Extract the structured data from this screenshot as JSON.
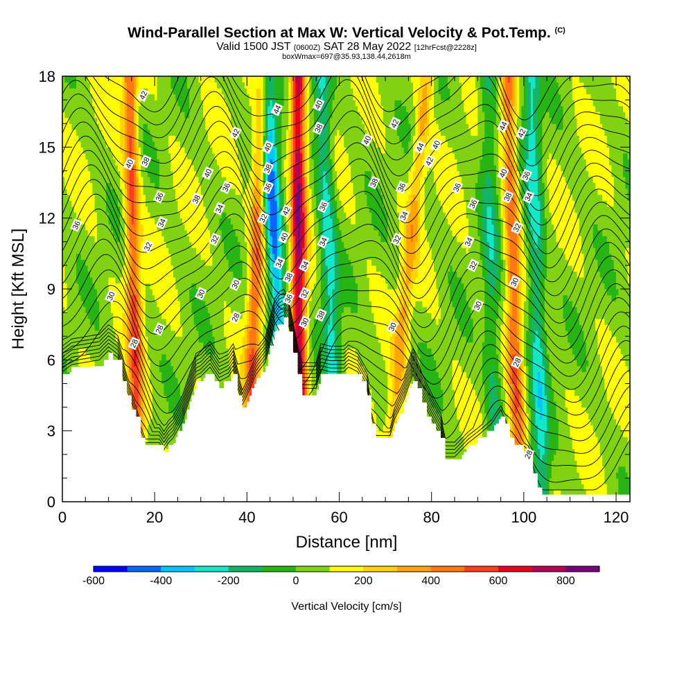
{
  "header": {
    "title": "Wind-Parallel Section at Max W: Vertical Velocity & Pot.Temp.",
    "title_mark": "(C)",
    "line2_a": "Valid 1500 JST",
    "line2_b": "(0600Z)",
    "line2_c": "SAT 28 May 2022",
    "line2_d": "[12hrFcst@2228z]",
    "line3": "boxWmax=697@35.93,138.44,2618m"
  },
  "chart_data": {
    "type": "heatmap",
    "xlabel": "Distance [nm]",
    "ylabel": "Height [Kft MSL]",
    "xlim": [
      0,
      123
    ],
    "ylim": [
      0,
      18
    ],
    "x_ticks": [
      0,
      20,
      40,
      60,
      80,
      100,
      120
    ],
    "y_ticks": [
      0,
      3,
      6,
      9,
      12,
      15,
      18
    ],
    "colorbar": {
      "label": "Vertical Velocity [cm/s]",
      "ticks": [
        -600,
        -400,
        -200,
        0,
        200,
        400,
        600,
        800
      ],
      "bounds": [
        -600,
        -500,
        -400,
        -300,
        -200,
        -100,
        0,
        100,
        200,
        300,
        400,
        500,
        600,
        700,
        800,
        900
      ],
      "colors": [
        "#0000ff",
        "#0a64ff",
        "#00c8ff",
        "#14e6c8",
        "#14b464",
        "#28b414",
        "#82d214",
        "#ffff00",
        "#ffd200",
        "#ffa500",
        "#ff7814",
        "#ff3c1e",
        "#e6001e",
        "#b40050",
        "#780078"
      ]
    },
    "terrain": [
      [
        0,
        5.3
      ],
      [
        2,
        5.6
      ],
      [
        8,
        5.8
      ],
      [
        10,
        6.2
      ],
      [
        12,
        5.9
      ],
      [
        14,
        4.5
      ],
      [
        16,
        3.5
      ],
      [
        17,
        2.8
      ],
      [
        18,
        2.3
      ],
      [
        21,
        2.3
      ],
      [
        22,
        2.0
      ],
      [
        23,
        2.3
      ],
      [
        24,
        2.5
      ],
      [
        26,
        3.2
      ],
      [
        27,
        3.8
      ],
      [
        29,
        5.0
      ],
      [
        30,
        5.1
      ],
      [
        32,
        5.5
      ],
      [
        34,
        4.9
      ],
      [
        36,
        5.1
      ],
      [
        37,
        5.4
      ],
      [
        38,
        4.6
      ],
      [
        39,
        3.9
      ],
      [
        40,
        4.3
      ],
      [
        42,
        5.2
      ],
      [
        44,
        5.7
      ],
      [
        46,
        7.3
      ],
      [
        47,
        7.6
      ],
      [
        48,
        7.7
      ],
      [
        49,
        7.3
      ],
      [
        50,
        6.3
      ],
      [
        51,
        5.3
      ],
      [
        52,
        4.6
      ],
      [
        55,
        4.6
      ],
      [
        56,
        5.4
      ],
      [
        58,
        5.3
      ],
      [
        61,
        5.3
      ],
      [
        62,
        5.5
      ],
      [
        64,
        5.3
      ],
      [
        66,
        4.6
      ],
      [
        67,
        3.4
      ],
      [
        68,
        2.6
      ],
      [
        71,
        2.6
      ],
      [
        72,
        3.3
      ],
      [
        74,
        4.1
      ],
      [
        76,
        5.2
      ],
      [
        78,
        4.1
      ],
      [
        80,
        3.3
      ],
      [
        82,
        2.6
      ],
      [
        83,
        1.7
      ],
      [
        85,
        1.7
      ],
      [
        86,
        1.9
      ],
      [
        88,
        2.3
      ],
      [
        90,
        2.6
      ],
      [
        93,
        3.1
      ],
      [
        94,
        3.4
      ],
      [
        95,
        3.7
      ],
      [
        96,
        3.3
      ],
      [
        97,
        2.6
      ],
      [
        99,
        2.3
      ],
      [
        101,
        2.0
      ],
      [
        102,
        1.3
      ],
      [
        103,
        0.7
      ],
      [
        104,
        0.3
      ],
      [
        110,
        0.3
      ],
      [
        115,
        0.3
      ],
      [
        123,
        0.3
      ]
    ],
    "updraft_bands": [
      {
        "x_bottom": 16.5,
        "x_top": 14.5,
        "w_max": 450
      },
      {
        "x_bottom": 40.0,
        "x_top": 43.5,
        "w_max": 400
      },
      {
        "x_bottom": 51.5,
        "x_top": 51.0,
        "w_max": 697
      },
      {
        "x_bottom": 70.0,
        "x_top": 79.0,
        "w_max": 250
      },
      {
        "x_bottom": 99.0,
        "x_top": 96.5,
        "w_max": 400
      }
    ],
    "downdraft_bands": [
      {
        "x_bottom": 49.0,
        "x_top": 44.0,
        "w_min": -500
      },
      {
        "x_bottom": 60.0,
        "x_top": 56.0,
        "w_min": -300
      },
      {
        "x_bottom": 104.0,
        "x_top": 101.5,
        "w_min": -300
      },
      {
        "x_bottom": 94.0,
        "x_top": 92.0,
        "w_min": -200
      }
    ],
    "theta_labels": [
      {
        "text": "42",
        "x": 17.5,
        "y": 17.2
      },
      {
        "text": "40",
        "x": 14.5,
        "y": 14.3
      },
      {
        "text": "38",
        "x": 18.0,
        "y": 14.4
      },
      {
        "text": "36",
        "x": 21.0,
        "y": 12.9
      },
      {
        "text": "34",
        "x": 21.5,
        "y": 11.8
      },
      {
        "text": "32",
        "x": 18.5,
        "y": 10.8
      },
      {
        "text": "36",
        "x": 3.0,
        "y": 11.7
      },
      {
        "text": "30",
        "x": 10.5,
        "y": 8.7
      },
      {
        "text": "28",
        "x": 15.5,
        "y": 6.7
      },
      {
        "text": "28",
        "x": 21.0,
        "y": 7.3
      },
      {
        "text": "42",
        "x": 37.5,
        "y": 15.6
      },
      {
        "text": "40",
        "x": 31.5,
        "y": 13.9
      },
      {
        "text": "38",
        "x": 29.0,
        "y": 12.8
      },
      {
        "text": "36",
        "x": 35.5,
        "y": 13.3
      },
      {
        "text": "34",
        "x": 34.0,
        "y": 12.4
      },
      {
        "text": "32",
        "x": 33.0,
        "y": 11.1
      },
      {
        "text": "30",
        "x": 30.0,
        "y": 8.8
      },
      {
        "text": "30",
        "x": 37.5,
        "y": 9.2
      },
      {
        "text": "28",
        "x": 37.5,
        "y": 7.8
      },
      {
        "text": "44",
        "x": 46.5,
        "y": 16.6
      },
      {
        "text": "40",
        "x": 44.5,
        "y": 15.0
      },
      {
        "text": "38",
        "x": 44.5,
        "y": 14.1
      },
      {
        "text": "36",
        "x": 44.5,
        "y": 13.3
      },
      {
        "text": "32",
        "x": 43.5,
        "y": 12.0
      },
      {
        "text": "42",
        "x": 48.5,
        "y": 12.3
      },
      {
        "text": "40",
        "x": 48.0,
        "y": 11.2
      },
      {
        "text": "34",
        "x": 47.0,
        "y": 10.1
      },
      {
        "text": "38",
        "x": 49.0,
        "y": 9.5
      },
      {
        "text": "36",
        "x": 49.0,
        "y": 8.6
      },
      {
        "text": "40",
        "x": 55.5,
        "y": 16.8
      },
      {
        "text": "38",
        "x": 55.5,
        "y": 15.8
      },
      {
        "text": "36",
        "x": 56.5,
        "y": 12.5
      },
      {
        "text": "34",
        "x": 56.5,
        "y": 11.0
      },
      {
        "text": "34",
        "x": 52.5,
        "y": 10.0
      },
      {
        "text": "32",
        "x": 52.5,
        "y": 8.8
      },
      {
        "text": "30",
        "x": 52.5,
        "y": 7.6
      },
      {
        "text": "38",
        "x": 56.0,
        "y": 7.9
      },
      {
        "text": "42",
        "x": 72.0,
        "y": 16.0
      },
      {
        "text": "40",
        "x": 66.0,
        "y": 15.3
      },
      {
        "text": "38",
        "x": 67.5,
        "y": 13.5
      },
      {
        "text": "36",
        "x": 73.5,
        "y": 13.3
      },
      {
        "text": "34",
        "x": 74.0,
        "y": 12.1
      },
      {
        "text": "32",
        "x": 72.5,
        "y": 11.1
      },
      {
        "text": "30",
        "x": 71.5,
        "y": 7.4
      },
      {
        "text": "44",
        "x": 77.5,
        "y": 15.0
      },
      {
        "text": "42",
        "x": 79.5,
        "y": 14.4
      },
      {
        "text": "40",
        "x": 81.0,
        "y": 15.1
      },
      {
        "text": "36",
        "x": 85.5,
        "y": 13.3
      },
      {
        "text": "36",
        "x": 89.0,
        "y": 12.6
      },
      {
        "text": "34",
        "x": 88.0,
        "y": 11.0
      },
      {
        "text": "32",
        "x": 89.0,
        "y": 10.0
      },
      {
        "text": "30",
        "x": 90.0,
        "y": 8.3
      },
      {
        "text": "44",
        "x": 95.5,
        "y": 15.9
      },
      {
        "text": "42",
        "x": 99.5,
        "y": 15.6
      },
      {
        "text": "40",
        "x": 95.5,
        "y": 13.9
      },
      {
        "text": "38",
        "x": 96.5,
        "y": 12.9
      },
      {
        "text": "36",
        "x": 100.5,
        "y": 13.8
      },
      {
        "text": "34",
        "x": 101.0,
        "y": 12.9
      },
      {
        "text": "32",
        "x": 98.5,
        "y": 11.6
      },
      {
        "text": "30",
        "x": 98.0,
        "y": 9.3
      },
      {
        "text": "28",
        "x": 98.5,
        "y": 5.9
      },
      {
        "text": "28",
        "x": 101.0,
        "y": 2.0
      }
    ]
  }
}
